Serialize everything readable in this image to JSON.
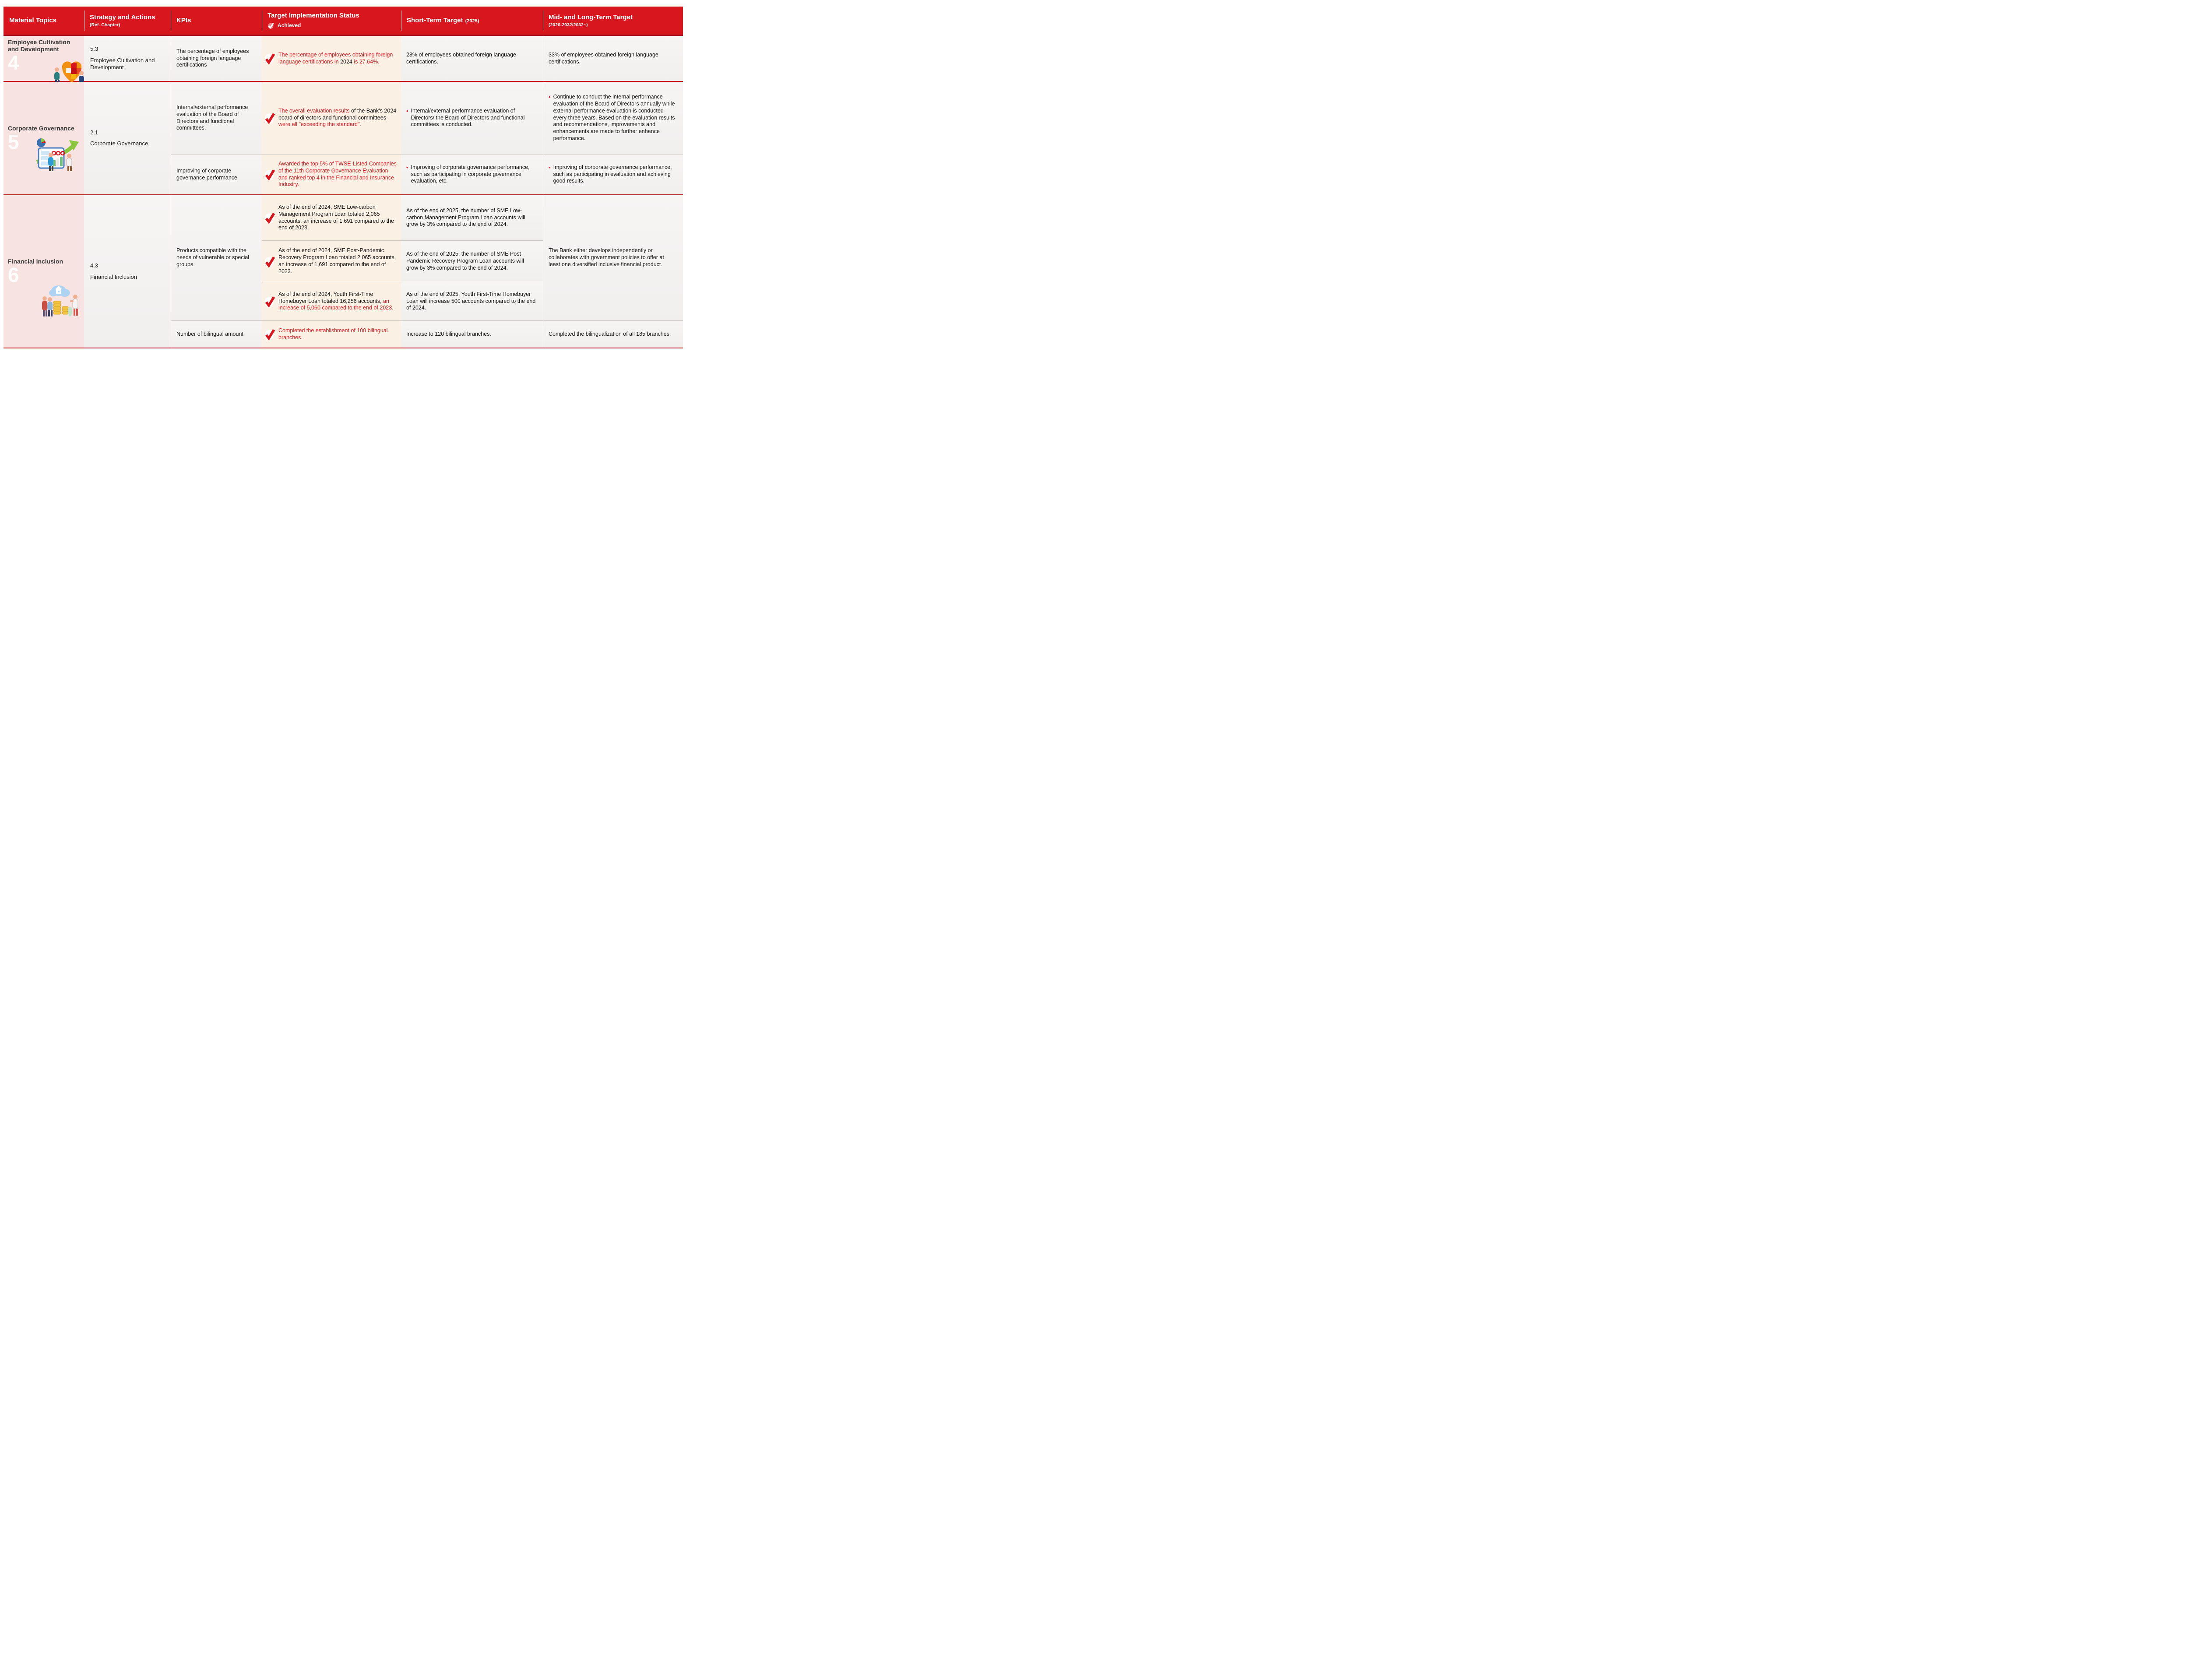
{
  "colors": {
    "header_bg": "#d7161e",
    "accent_red": "#d7161e",
    "material_col_bg": "#f7e3e2",
    "status_col_bg": "#faf0e3",
    "cell_bg": "#f5f4f2",
    "group_divider": "#c3151b",
    "sub_divider": "#d0ccc8"
  },
  "header": {
    "cols": [
      {
        "label": "Material Topics"
      },
      {
        "label": "Strategy and Actions",
        "sub": "(Ref. Chapter)"
      },
      {
        "label": "KPIs"
      },
      {
        "label": "Target Implementation Status",
        "legend": "Achieved"
      },
      {
        "label": "Short-Term Target",
        "sub": "(2025)"
      },
      {
        "label": "Mid- and Long-Term Target",
        "sub": "(2026-2032/2032~)"
      }
    ]
  },
  "groups": [
    {
      "topic": "Employee Cultivation and Development",
      "number": "4",
      "chapter_no": "5.3",
      "chapter": "Employee Cultivation and Development",
      "rows": [
        {
          "kpi": "The percentage of employees obtaining foreign language certifications",
          "status": [
            {
              "t": "The percentage of employees obtaining foreign language certifications in ",
              "red": true
            },
            {
              "t": "2024 ",
              "red": false
            },
            {
              "t": "is 27.64%.",
              "red": true
            }
          ],
          "short": {
            "text": "28% of employees obtained foreign language certifications."
          },
          "long": {
            "text": "33% of employees obtained foreign language certifications."
          }
        }
      ]
    },
    {
      "topic": "Corporate Governance",
      "number": "5",
      "chapter_no": "2.1",
      "chapter": "Corporate Governance",
      "rows": [
        {
          "kpi": "Internal/external performance evaluation of the Board of Directors and functional committees.",
          "status": [
            {
              "t": "The overall evaluation results ",
              "red": true
            },
            {
              "t": "of the Bank's 2024 board of directors and functional committees ",
              "red": false
            },
            {
              "t": "were all \"exceeding the standard\"",
              "red": true
            },
            {
              "t": ".",
              "red": false
            }
          ],
          "short": {
            "text": "Internal/external performance evaluation of Directors/ the Board of Directors and functional committees is conducted."
          },
          "long": {
            "text": "Continue to conduct the internal performance evaluation of the Board of Directors annually while external performance evaluation is conducted every three years. Based on the evaluation results and recommendations, improvements and enhancements are made to further enhance performance."
          }
        },
        {
          "kpi": "Improving of corporate governance performance",
          "status": [
            {
              "t": "Awarded the top 5% of TWSE-Listed Companies of the 11th Corporate Governance Evaluation and ranked top 4 in the Financial and Insurance Industry.",
              "red": true
            }
          ],
          "short": {
            "text": "Improving of corporate governance performance, such as participating in corporate governance evaluation, etc."
          },
          "long": {
            "text": "Improving of corporate governance performance, such as participating in evaluation and achieving good results."
          }
        }
      ]
    },
    {
      "topic": "Financial Inclusion",
      "number": "6",
      "chapter_no": "4.3",
      "chapter": "Financial Inclusion",
      "kpi_merged": "Products compatible with the needs of vulnerable or special groups.",
      "long_merged": "The Bank either develops independently or collaborates with government policies to offer at least one diversified inclusive financial product.",
      "rows": [
        {
          "status": [
            {
              "t": "As of the end of 2024, SME Low-carbon Management Program Loan totaled 2,065 accounts, an increase of 1,691 compared to the end of 2023.",
              "red": false
            }
          ],
          "short": {
            "text": "As of the end of 2025, the number of SME Low-carbon Management Program Loan accounts will grow by 3% compared to the end of 2024."
          }
        },
        {
          "status": [
            {
              "t": "As of the end of 2024, SME Post-Pandemic Recovery Program Loan totaled 2,065 accounts, an increase of 1,691 compared to the end of 2023.",
              "red": false
            }
          ],
          "short": {
            "text": "As of the end of 2025, the number of SME Post-Pandemic Recovery Program Loan accounts will grow by 3% compared to the end of 2024."
          }
        },
        {
          "status": [
            {
              "t": "As of the end of 2024, Youth First-Time Homebuyer Loan totaled 16,256 accounts, ",
              "red": false
            },
            {
              "t": "an increase of 5,060 compared to the end of 2023",
              "red": true
            },
            {
              "t": ".",
              "red": false
            }
          ],
          "short": {
            "text": "As of the end of 2025, Youth First-Time Homebuyer Loan will increase 500 accounts compared to the end of 2024."
          }
        },
        {
          "kpi": "Number of bilingual amount",
          "status": [
            {
              "t": "Completed the establishment of 100 bilingual branches.",
              "red": true
            }
          ],
          "short": {
            "text": "Increase to 120 bilingual branches."
          },
          "long": {
            "text": "Completed the bilingualization of all 185 branches."
          }
        }
      ]
    }
  ]
}
